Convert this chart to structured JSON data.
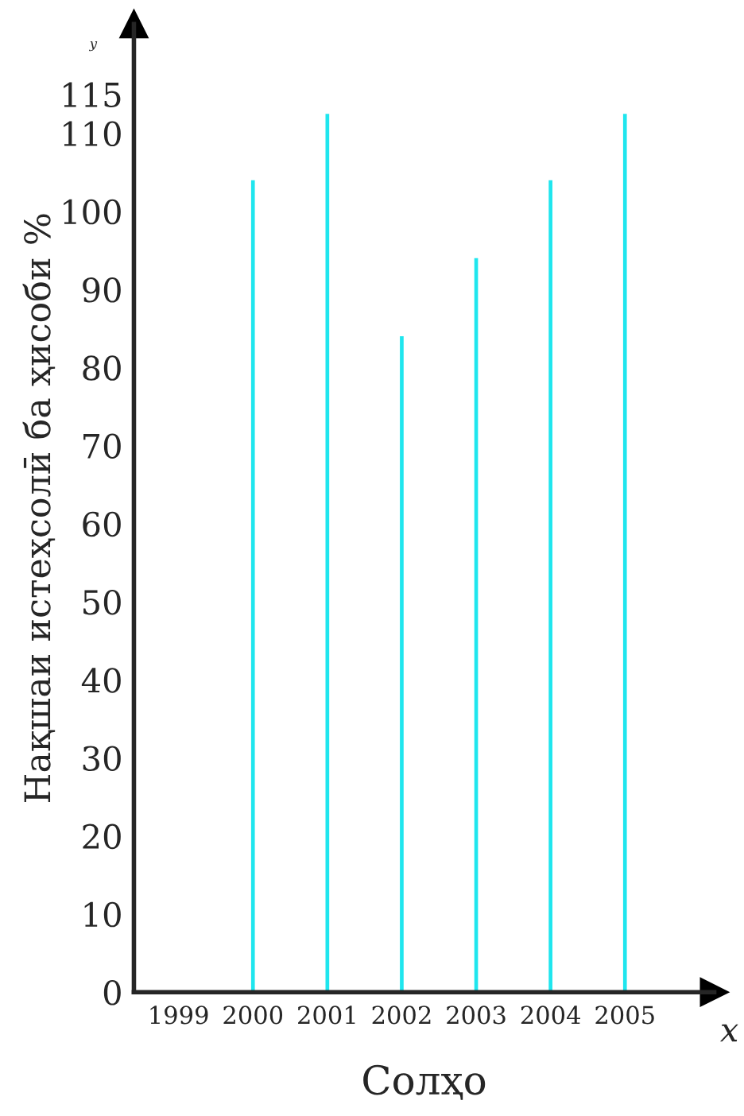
{
  "chart_data": {
    "type": "bar",
    "xlabel": "Солҳо",
    "ylabel": "Нақшаи истеҳсолӣ ба ҳисоби %",
    "categories": [
      "1999",
      "2000",
      "2001",
      "2002",
      "2003",
      "2004",
      "2005"
    ],
    "values": [
      null,
      104,
      112.5,
      84,
      94,
      104,
      112.5
    ],
    "color": "#1fe6ee",
    "ylim": [
      0,
      124
    ],
    "yticks": [
      0,
      10,
      20,
      30,
      40,
      50,
      60,
      70,
      80,
      90,
      100,
      110,
      115
    ],
    "annotations": [
      "y",
      "x"
    ],
    "grid": false,
    "legend": false
  }
}
